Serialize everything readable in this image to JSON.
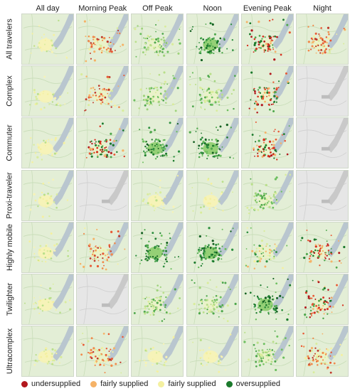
{
  "columns": [
    "All day",
    "Morning Peak",
    "Off Peak",
    "Noon",
    "Evening Peak",
    "Night"
  ],
  "rows": [
    "All travelers",
    "Complex",
    "Commuter",
    "Proxi-traveler",
    "Highly mobile",
    "Twilighter",
    "Ultracomplex"
  ],
  "panels": [
    [
      "low",
      "mixed",
      "moderate",
      "over",
      "under",
      "mixed"
    ],
    [
      "low",
      "mixed",
      "moderate",
      "moderate",
      "under",
      "empty"
    ],
    [
      "low",
      "under",
      "over",
      "over",
      "under",
      "empty"
    ],
    [
      "low",
      "empty",
      "low",
      "low",
      "moderate",
      "empty"
    ],
    [
      "low",
      "mixed",
      "over",
      "over",
      "fair",
      "under"
    ],
    [
      "low",
      "empty",
      "moderate",
      "moderate",
      "over",
      "under"
    ],
    [
      "low",
      "mixed",
      "low",
      "low",
      "moderate",
      "mixed"
    ]
  ],
  "legend": [
    {
      "label": "undersupplied",
      "color": "#b2171d"
    },
    {
      "label": "fairly supplied",
      "color": "#f5b267"
    },
    {
      "label": "fairly supplied",
      "color": "#f4f0a0"
    },
    {
      "label": "oversupplied",
      "color": "#1b7a2c"
    }
  ],
  "colors": {
    "map_background": "#e3eed6",
    "lake": "#b9c6cf",
    "empty_background": "#e6e6e6"
  }
}
